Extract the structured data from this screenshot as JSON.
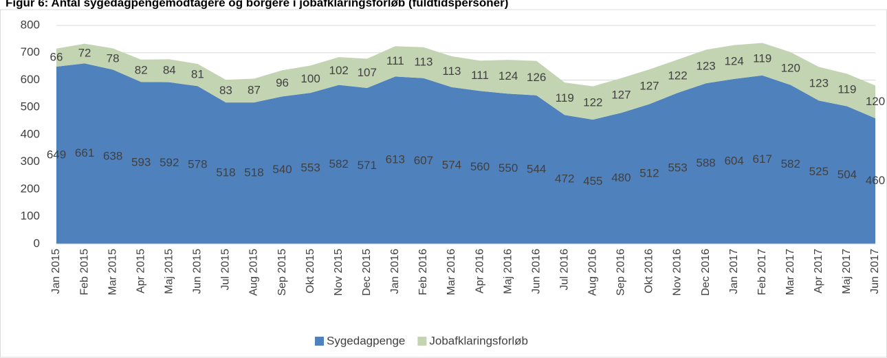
{
  "chart_data": {
    "type": "stacked-area",
    "title": "Figur 6: Antal sygedagpengemodtagere og borgere i jobafklaringsforløb (fuldtidspersoner)",
    "categories": [
      "Jan 2015",
      "Feb 2015",
      "Mar 2015",
      "Apr 2015",
      "Maj 2015",
      "Jun 2015",
      "Jul 2015",
      "Aug 2015",
      "Sep 2015",
      "Okt 2015",
      "Nov 2015",
      "Dec 2015",
      "Jan 2016",
      "Feb 2016",
      "Mar 2016",
      "Apr 2016",
      "Maj 2016",
      "Jun 2016",
      "Jul 2016",
      "Aug 2016",
      "Sep 2016",
      "Okt 2016",
      "Nov 2016",
      "Dec 2016",
      "Jan 2017",
      "Feb 2017",
      "Mar 2017",
      "Apr 2017",
      "Maj 2017",
      "Jun 2017"
    ],
    "series": [
      {
        "name": "Sygedagpenge",
        "color": "#4f81bd",
        "values": [
          649,
          661,
          638,
          593,
          592,
          578,
          518,
          518,
          540,
          553,
          582,
          571,
          613,
          607,
          574,
          560,
          550,
          544,
          472,
          455,
          480,
          512,
          553,
          588,
          604,
          617,
          582,
          525,
          504,
          460
        ]
      },
      {
        "name": "Jobafklaringsforløb",
        "color": "#c3d4b2",
        "values": [
          66,
          72,
          78,
          82,
          84,
          81,
          83,
          87,
          96,
          100,
          102,
          107,
          111,
          113,
          113,
          111,
          124,
          126,
          119,
          122,
          127,
          127,
          122,
          123,
          124,
          119,
          120,
          123,
          119,
          120
        ]
      }
    ],
    "ylim": [
      0,
      800
    ],
    "yticks": [
      0,
      100,
      200,
      300,
      400,
      500,
      600,
      700,
      800
    ],
    "grid": true,
    "legend": "bottom"
  }
}
